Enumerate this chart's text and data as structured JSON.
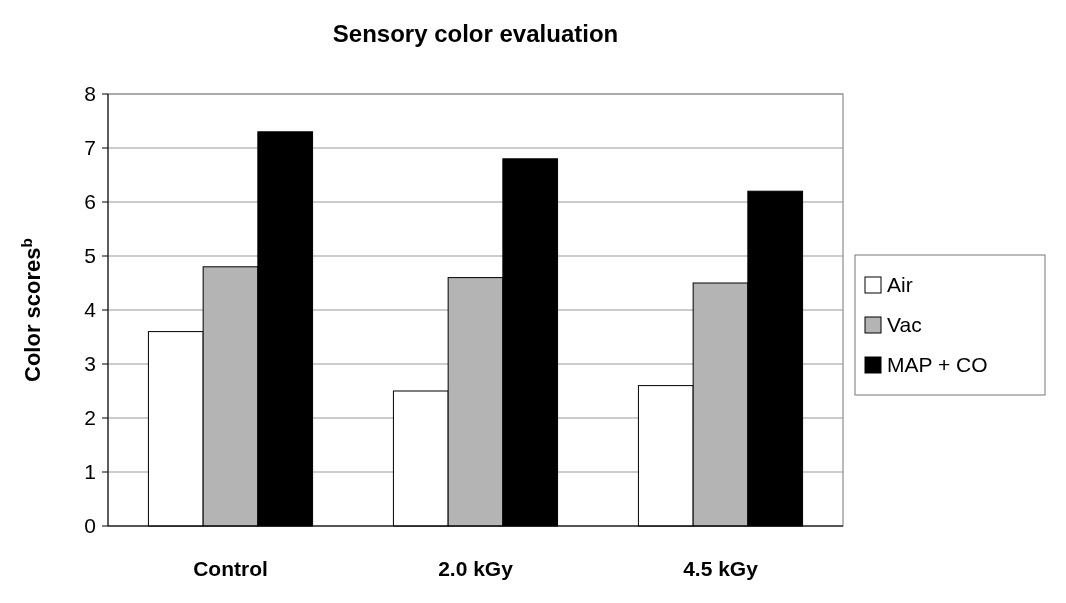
{
  "chart_data": {
    "type": "bar",
    "title": "Sensory color evaluation",
    "ylabel": "Color scores$^{b}$",
    "categories": [
      "Control",
      "2.0 kGy",
      "4.5 kGy"
    ],
    "series": [
      {
        "name": "Air",
        "color": "#ffffff",
        "values": [
          3.6,
          2.5,
          2.6
        ]
      },
      {
        "name": "Vac",
        "color": "#b4b4b4",
        "values": [
          4.8,
          4.6,
          4.5
        ]
      },
      {
        "name": "MAP + CO",
        "color": "#000000",
        "values": [
          7.3,
          6.8,
          6.2
        ]
      }
    ],
    "ylim": [
      0,
      8
    ],
    "yticks": [
      0,
      1,
      2,
      3,
      4,
      5,
      6,
      7,
      8
    ],
    "grid": "y",
    "legend": "right"
  }
}
